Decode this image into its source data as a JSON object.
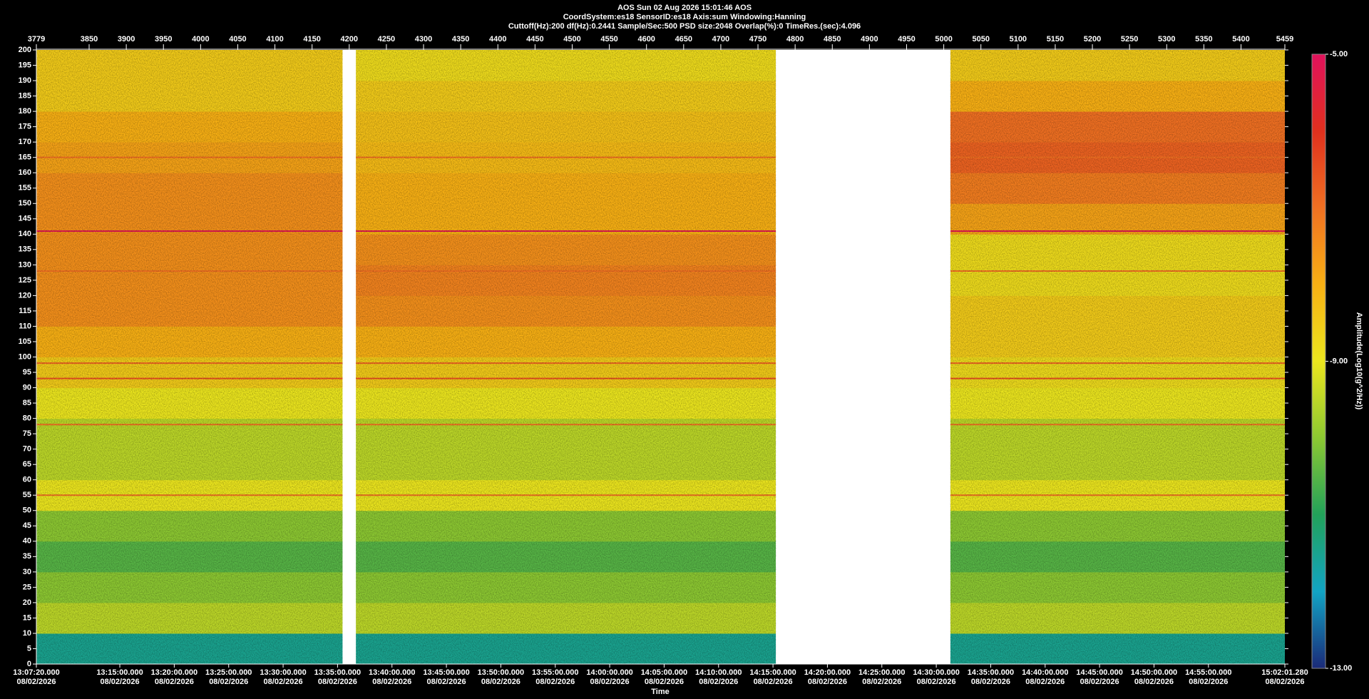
{
  "chart_data": {
    "type": "spectrogram",
    "title": "AOS  Sun 02 Aug 2026 15:01:46  AOS",
    "subtitle": [
      "CoordSystem:es18   SensorID:es18   Axis:sum   Windowing:Hanning",
      "Cuttoff(Hz):200   df(Hz):0.2441   Sample/Sec:500   PSD size:2048   Overlap(%):0   TimeRes.(sec):4.096"
    ],
    "xlabel": "Time",
    "colorbar_label": "Amplitude(Log10(g^2/Hz))",
    "xlim": [
      3779,
      5459
    ],
    "xticks": [
      3779,
      3850,
      3900,
      3950,
      4000,
      4050,
      4100,
      4150,
      4200,
      4250,
      4300,
      4350,
      4400,
      4450,
      4500,
      4550,
      4600,
      4650,
      4700,
      4750,
      4800,
      4850,
      4900,
      4950,
      5000,
      5050,
      5100,
      5150,
      5200,
      5250,
      5300,
      5350,
      5400,
      5459
    ],
    "x2lim": [
      47240,
      54121.28
    ],
    "x2ticks": [
      {
        "value": 47240,
        "label": "13:07:20.000"
      },
      {
        "value": 47700,
        "label": "13:15:00.000"
      },
      {
        "value": 48000,
        "label": "13:20:00.000"
      },
      {
        "value": 48300,
        "label": "13:25:00.000"
      },
      {
        "value": 48600,
        "label": "13:30:00.000"
      },
      {
        "value": 48900,
        "label": "13:35:00.000"
      },
      {
        "value": 49200,
        "label": "13:40:00.000"
      },
      {
        "value": 49500,
        "label": "13:45:00.000"
      },
      {
        "value": 49800,
        "label": "13:50:00.000"
      },
      {
        "value": 50100,
        "label": "13:55:00.000"
      },
      {
        "value": 50400,
        "label": "14:00:00.000"
      },
      {
        "value": 50700,
        "label": "14:05:00.000"
      },
      {
        "value": 51000,
        "label": "14:10:00.000"
      },
      {
        "value": 51300,
        "label": "14:15:00.000"
      },
      {
        "value": 51600,
        "label": "14:20:00.000"
      },
      {
        "value": 51900,
        "label": "14:25:00.000"
      },
      {
        "value": 52200,
        "label": "14:30:00.000"
      },
      {
        "value": 52500,
        "label": "14:35:00.000"
      },
      {
        "value": 52800,
        "label": "14:40:00.000"
      },
      {
        "value": 53100,
        "label": "14:45:00.000"
      },
      {
        "value": 53400,
        "label": "14:50:00.000"
      },
      {
        "value": 53700,
        "label": "14:55:00.000"
      },
      {
        "value": 54121.28,
        "label": "15:02:01.280"
      }
    ],
    "x2tick_date": "08/02/2026",
    "ylim": [
      0,
      200
    ],
    "yticks": [
      0,
      5,
      10,
      15,
      20,
      25,
      30,
      35,
      40,
      45,
      50,
      55,
      60,
      65,
      70,
      75,
      80,
      85,
      90,
      95,
      100,
      105,
      110,
      115,
      120,
      125,
      130,
      135,
      140,
      145,
      150,
      155,
      160,
      165,
      170,
      175,
      180,
      185,
      190,
      195,
      200
    ],
    "clim": [
      -13,
      -5
    ],
    "cticks": [
      {
        "value": -5,
        "label": "-5.00"
      },
      {
        "value": -9,
        "label": "-9.00"
      },
      {
        "value": -13,
        "label": "-13.00"
      }
    ],
    "colormap": [
      "#1b2a78",
      "#12a4c4",
      "#22a25a",
      "#8cc832",
      "#ece61e",
      "#f8b014",
      "#f07022",
      "#e0301e",
      "#e0125c"
    ],
    "y_bins": [
      0,
      10,
      20,
      30,
      40,
      50,
      60,
      70,
      80,
      90,
      100,
      110,
      120,
      130,
      140,
      150,
      160,
      170,
      180,
      190,
      200
    ],
    "segments": [
      {
        "x": [
          3779,
          4191
        ],
        "levels": [
          -11.5,
          -9.5,
          -10,
          -10.5,
          -10,
          -9,
          -9.5,
          -9.5,
          -9,
          -8.5,
          -8,
          -7.5,
          -7.5,
          -7.5,
          -7.5,
          -7.5,
          -7.8,
          -8,
          -8.5,
          -8.5
        ]
      },
      {
        "x": [
          4209,
          4774
        ],
        "levels": [
          -11.5,
          -9.5,
          -10,
          -10.5,
          -10,
          -9,
          -9.5,
          -9.5,
          -9,
          -8.5,
          -8,
          -7.5,
          -7.3,
          -7.5,
          -8,
          -8,
          -8.2,
          -8.3,
          -8.5,
          -8.8
        ]
      },
      {
        "x": [
          5009,
          5459
        ],
        "levels": [
          -11.5,
          -9.5,
          -10,
          -10.5,
          -10,
          -9,
          -9.5,
          -9.5,
          -9,
          -8.8,
          -8.5,
          -8.5,
          -8.8,
          -8.8,
          -7.8,
          -7.2,
          -6.8,
          -7,
          -8,
          -8.5
        ]
      }
    ],
    "lines": [
      {
        "freq": 141,
        "level": -5.2
      },
      {
        "freq": 93,
        "level": -6.5
      },
      {
        "freq": 98,
        "level": -6.8
      },
      {
        "freq": 55,
        "level": -7
      },
      {
        "freq": 78,
        "level": -7
      },
      {
        "freq": 165,
        "level": -7
      },
      {
        "freq": 128,
        "level": -7
      }
    ]
  }
}
